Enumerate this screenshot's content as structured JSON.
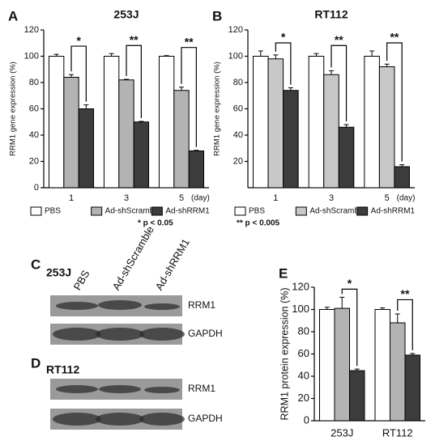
{
  "chart_data": [
    {
      "type": "bar",
      "panel": "A",
      "title": "253J",
      "y_label": "RRM1 gene expression (%)",
      "categories": [
        "1",
        "3",
        "5"
      ],
      "x_unit": "(day)",
      "series": [
        {
          "name": "PBS",
          "color": "#ffffff",
          "values": [
            100,
            100,
            100
          ],
          "errors": [
            1.5,
            2,
            0.5
          ]
        },
        {
          "name": "Ad-shScramble",
          "color": "#b3b3b3",
          "values": [
            84,
            82,
            74
          ],
          "errors": [
            2,
            0.5,
            2.5
          ]
        },
        {
          "name": "Ad-shRRM1",
          "color": "#3c3c3c",
          "values": [
            60,
            50,
            28
          ],
          "errors": [
            3,
            0.5,
            0.5
          ]
        }
      ],
      "ylim": [
        0,
        120
      ],
      "yticks": [
        0,
        20,
        40,
        60,
        80,
        100,
        120
      ],
      "significance": [
        "*",
        "**",
        "**"
      ],
      "legend": true,
      "note": "* p < 0.05"
    },
    {
      "type": "bar",
      "panel": "B",
      "title": "RT112",
      "y_label": "RRM1 gene expression (%)",
      "categories": [
        "1",
        "3",
        "5"
      ],
      "x_unit": "(day)",
      "series": [
        {
          "name": "PBS",
          "color": "#ffffff",
          "values": [
            100,
            100,
            100
          ],
          "errors": [
            4,
            2,
            4
          ]
        },
        {
          "name": "Ad-shScramble",
          "color": "#c8c8c8",
          "values": [
            98,
            86,
            92
          ],
          "errors": [
            3,
            3,
            2
          ]
        },
        {
          "name": "Ad-shRRM1",
          "color": "#3c3c3c",
          "values": [
            74,
            46,
            16
          ],
          "errors": [
            2,
            2,
            1.5
          ]
        }
      ],
      "ylim": [
        0,
        120
      ],
      "yticks": [
        20,
        40,
        60,
        80,
        100,
        120
      ],
      "significance": [
        "*",
        "**",
        "**"
      ],
      "legend": true,
      "note": "** p < 0.005"
    },
    {
      "type": "bar",
      "panel": "E",
      "y_label": "RRM1 protein expression (%)",
      "categories": [
        "253J",
        "RT112"
      ],
      "series": [
        {
          "color": "#ffffff",
          "values": [
            100,
            100
          ],
          "errors": [
            2,
            1.5
          ]
        },
        {
          "color": "#b3b3b3",
          "values": [
            101,
            88
          ],
          "errors": [
            10,
            8
          ]
        },
        {
          "color": "#3c3c3c",
          "values": [
            45,
            59
          ],
          "errors": [
            1.5,
            1.5
          ]
        }
      ],
      "ylim": [
        0,
        120
      ],
      "yticks": [
        0,
        20,
        40,
        60,
        80,
        100,
        120
      ],
      "significance": [
        "*",
        "**"
      ],
      "legend": false
    }
  ],
  "blots": [
    {
      "panel": "C",
      "title": "253J",
      "lanes": [
        "PBS",
        "Ad-shScramble",
        "Ad-shRRM1"
      ],
      "rows": [
        "RRM1",
        "GAPDH"
      ]
    },
    {
      "panel": "D",
      "title": "RT112",
      "rows": [
        "RRM1",
        "GAPDH"
      ]
    }
  ]
}
